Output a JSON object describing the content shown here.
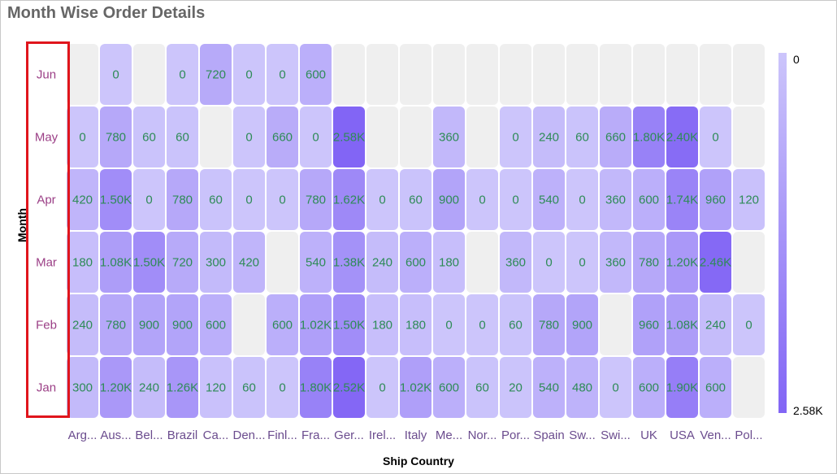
{
  "title": "Month Wise Order Details",
  "colors": {
    "low": "#ccc5fb",
    "high": "#8265f5",
    "empty": "#efefef",
    "cell_text": "#2e8b57",
    "month_text": "#9b3f86",
    "country_text": "#6b4c8e",
    "highlight": "#e0151c"
  },
  "chart_data": {
    "type": "heatmap",
    "title": "Month Wise Order Details",
    "xlabel": "Ship Country",
    "ylabel": "Month",
    "x": [
      "Arg...",
      "Aus...",
      "Bel...",
      "Brazil",
      "Ca...",
      "Den...",
      "Finl...",
      "Fra...",
      "Ger...",
      "Irel...",
      "Italy",
      "Me...",
      "Nor...",
      "Por...",
      "Spain",
      "Sw...",
      "Swi...",
      "UK",
      "USA",
      "Ven...",
      "Pol..."
    ],
    "y": [
      "Jun",
      "May",
      "Apr",
      "Mar",
      "Feb",
      "Jan"
    ],
    "values": [
      [
        null,
        0,
        null,
        0,
        720,
        0,
        0,
        600,
        null,
        null,
        null,
        null,
        null,
        null,
        null,
        null,
        null,
        null,
        null,
        null,
        null
      ],
      [
        0,
        780,
        60,
        60,
        null,
        0,
        660,
        0,
        2580,
        null,
        null,
        360,
        null,
        0,
        240,
        60,
        660,
        1800,
        2400,
        0,
        null
      ],
      [
        420,
        1500,
        0,
        780,
        60,
        0,
        0,
        780,
        1620,
        0,
        60,
        900,
        0,
        0,
        540,
        0,
        360,
        600,
        1740,
        960,
        120
      ],
      [
        180,
        1080,
        1500,
        720,
        300,
        420,
        null,
        540,
        1380,
        240,
        600,
        180,
        null,
        360,
        0,
        0,
        360,
        780,
        1200,
        2460,
        null
      ],
      [
        240,
        780,
        900,
        900,
        600,
        null,
        600,
        1020,
        1500,
        180,
        180,
        0,
        0,
        60,
        780,
        900,
        null,
        960,
        1080,
        240,
        0
      ],
      [
        300,
        1200,
        240,
        1260,
        120,
        60,
        0,
        1800,
        2520,
        0,
        1020,
        600,
        60,
        20,
        540,
        480,
        0,
        600,
        1900,
        600,
        null
      ]
    ],
    "labels": [
      [
        null,
        "0",
        null,
        "0",
        "720",
        "0",
        "0",
        "600",
        null,
        null,
        null,
        null,
        null,
        null,
        null,
        null,
        null,
        null,
        null,
        null,
        null
      ],
      [
        "0",
        "780",
        "60",
        "60",
        null,
        "0",
        "660",
        "0",
        "2.58K",
        null,
        null,
        "360",
        null,
        "0",
        "240",
        "60",
        "660",
        "1.80K",
        "2.40K",
        "0",
        null
      ],
      [
        "420",
        "1.50K",
        "0",
        "780",
        "60",
        "0",
        "0",
        "780",
        "1.62K",
        "0",
        "60",
        "900",
        "0",
        "0",
        "540",
        "0",
        "360",
        "600",
        "1.74K",
        "960",
        "120"
      ],
      [
        "180",
        "1.08K",
        "1.50K",
        "720",
        "300",
        "420",
        null,
        "540",
        "1.38K",
        "240",
        "600",
        "180",
        null,
        "360",
        "0",
        "0",
        "360",
        "780",
        "1.20K",
        "2.46K",
        null
      ],
      [
        "240",
        "780",
        "900",
        "900",
        "600",
        null,
        "600",
        "1.02K",
        "1.50K",
        "180",
        "180",
        "0",
        "0",
        "60",
        "780",
        "900",
        null,
        "960",
        "1.08K",
        "240",
        "0"
      ],
      [
        "300",
        "1.20K",
        "240",
        "1.26K",
        "120",
        "60",
        "0",
        "1.80K",
        "2.52K",
        "0",
        "1.02K",
        "600",
        "60",
        "20",
        "540",
        "480",
        "0",
        "600",
        "1.90K",
        "600",
        null
      ]
    ],
    "color_range": [
      0,
      2580
    ],
    "legend": {
      "min_label": "0",
      "max_label": "2.58K",
      "position": "right"
    },
    "highlighted_axis": "Month"
  }
}
